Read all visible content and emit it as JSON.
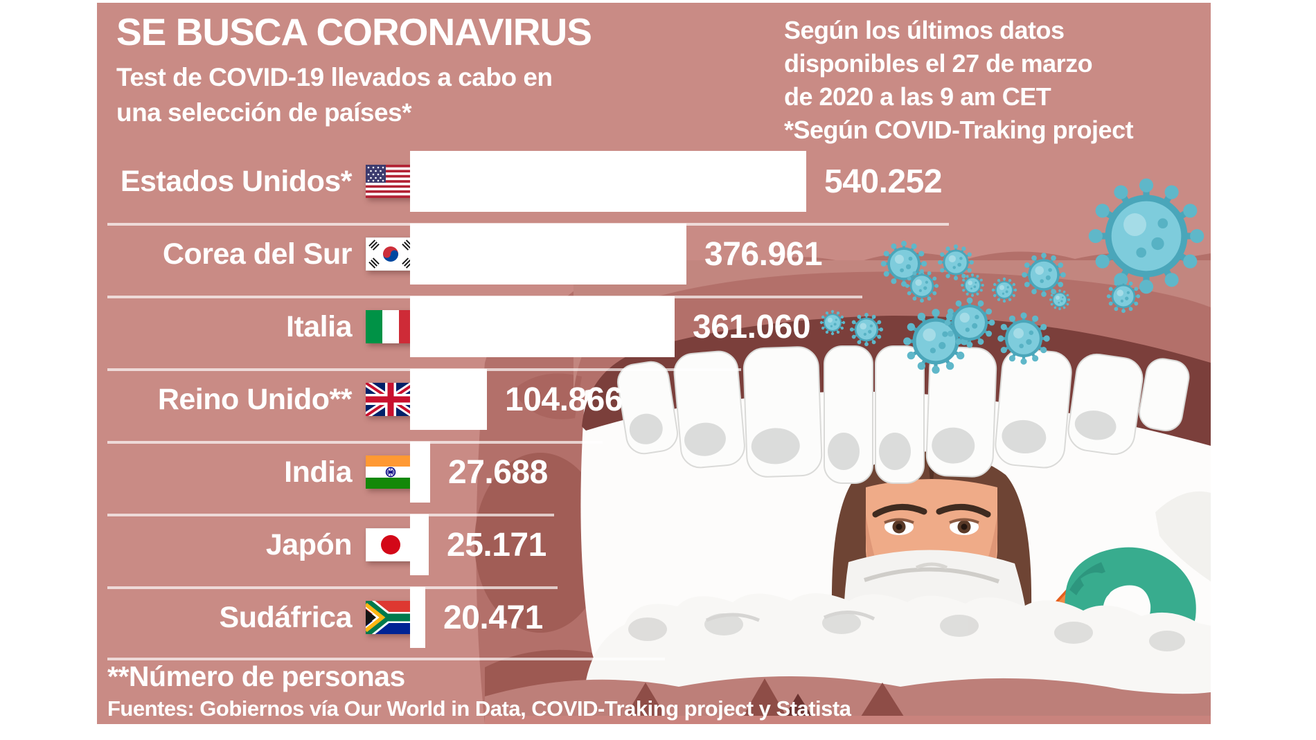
{
  "header": {
    "title": "SE BUSCA CORONAVIRUS",
    "subtitle_line1": "Test de COVID-19 llevados a cabo en",
    "subtitle_line2": "una selección de países*",
    "note_line1": "Según los últimos datos",
    "note_line2": "disponibles el 27 de marzo",
    "note_line3": "de 2020 a las 9 am CET",
    "note_line4": "*Según COVID-Traking project"
  },
  "footer": {
    "note": "**Número de personas",
    "sources": "Fuentes: Gobiernos vía Our World in Data, COVID-Traking project y Statista"
  },
  "chart_data": {
    "type": "bar",
    "orientation": "horizontal",
    "title": "SE BUSCA CORONAVIRUS",
    "subtitle": "Test de COVID-19 llevados a cabo en una selección de países*",
    "categories": [
      "Estados Unidos*",
      "Corea del Sur",
      "Italia",
      "Reino Unido**",
      "India",
      "Japón",
      "Sudáfrica"
    ],
    "values": [
      540252,
      376961,
      361060,
      104866,
      27688,
      25171,
      20471
    ],
    "value_labels": [
      "540.252",
      "376.961",
      "361.060",
      "104.866",
      "27.688",
      "25.171",
      "20.471"
    ],
    "flags": [
      "united-states",
      "south-korea",
      "italy",
      "united-kingdom",
      "india",
      "japan",
      "south-africa"
    ],
    "xlim": [
      0,
      540252
    ],
    "grid": false,
    "legend": "none",
    "bar_color": "#ffffff",
    "unit_note": "**Número de personas"
  },
  "colors": {
    "panel_background": "#c98b85",
    "text": "#ffffff",
    "separator": "rgba(255,255,255,0.68)",
    "mouth_blotch": "#b3706a",
    "virus": "#7eccdc",
    "glove": "#38ac8e",
    "swab": "#e55e1d"
  }
}
